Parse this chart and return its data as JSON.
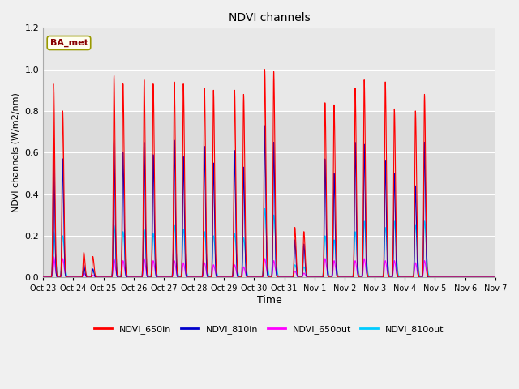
{
  "title": "NDVI channels",
  "xlabel": "Time",
  "ylabel": "NDVI channels (W/m2/nm)",
  "ylim": [
    0,
    1.2
  ],
  "background_color": "#f0f0f0",
  "plot_bg_lower": "#dcdcdc",
  "plot_bg_upper": "#e8e8e8",
  "legend_labels": [
    "NDVI_650in",
    "NDVI_810in",
    "NDVI_650out",
    "NDVI_810out"
  ],
  "legend_colors": [
    "#ff0000",
    "#0000cc",
    "#ff00ff",
    "#00ccff"
  ],
  "annotation_text": "BA_met",
  "annotation_color": "#880000",
  "annotation_bg": "#fffff0",
  "annotation_edge": "#999900",
  "peaks_650in": [
    0.93,
    0.8,
    0.12,
    0.1,
    0.97,
    0.93,
    0.95,
    0.93,
    0.94,
    0.93,
    0.91,
    0.9,
    0.9,
    0.88,
    1.0,
    0.99,
    0.24,
    0.22,
    0.84,
    0.83,
    0.91,
    0.95,
    0.94,
    0.81,
    0.8,
    0.88
  ],
  "peaks_810in": [
    0.67,
    0.57,
    0.06,
    0.04,
    0.66,
    0.6,
    0.65,
    0.59,
    0.66,
    0.58,
    0.63,
    0.55,
    0.61,
    0.53,
    0.73,
    0.65,
    0.18,
    0.16,
    0.57,
    0.5,
    0.65,
    0.64,
    0.56,
    0.5,
    0.44,
    0.65
  ],
  "peaks_650out": [
    0.1,
    0.09,
    0.02,
    0.01,
    0.09,
    0.08,
    0.09,
    0.08,
    0.08,
    0.07,
    0.07,
    0.06,
    0.06,
    0.05,
    0.09,
    0.08,
    0.03,
    0.02,
    0.09,
    0.08,
    0.08,
    0.09,
    0.08,
    0.08,
    0.07,
    0.08
  ],
  "peaks_810out": [
    0.22,
    0.2,
    0.04,
    0.03,
    0.25,
    0.22,
    0.23,
    0.21,
    0.25,
    0.23,
    0.22,
    0.2,
    0.21,
    0.19,
    0.33,
    0.3,
    0.06,
    0.05,
    0.2,
    0.18,
    0.22,
    0.27,
    0.24,
    0.27,
    0.25,
    0.27
  ],
  "n_days": 15,
  "xtick_labels": [
    "Oct 23",
    "Oct 24",
    "Oct 25",
    "Oct 26",
    "Oct 27",
    "Oct 28",
    "Oct 29",
    "Oct 30",
    "Oct 31",
    "Nov 1",
    "Nov 2",
    "Nov 3",
    "Nov 4",
    "Nov 5",
    "Nov 6",
    "Nov 7"
  ]
}
